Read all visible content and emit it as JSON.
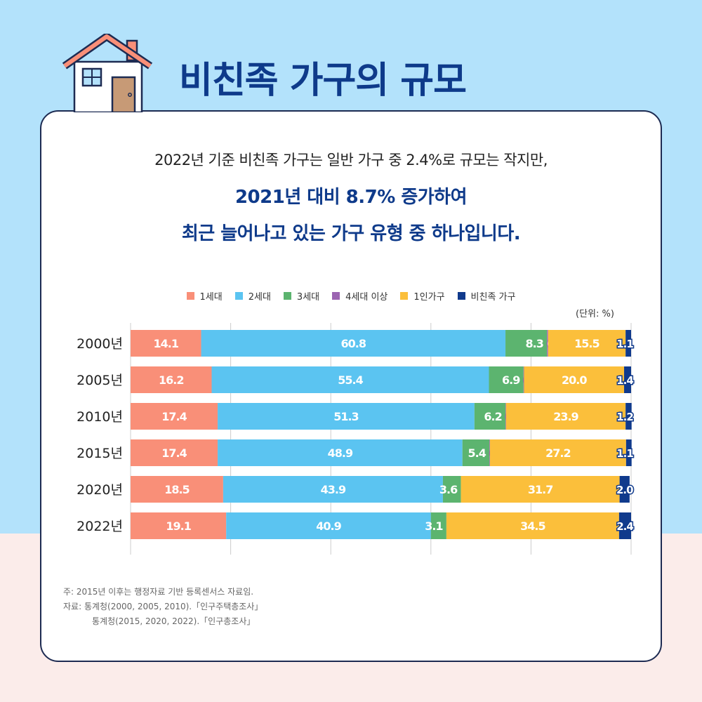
{
  "header": {
    "title": "비친족 가구의 규모"
  },
  "intro": {
    "line1": "2022년 기준 비친족 가구는 일반 가구 중 2.4%로 규모는 작지만,",
    "line2": "2021년 대비 8.7% 증가하여",
    "line3": "최근 늘어나고 있는 가구 유형 중 하나입니다."
  },
  "chart_data": {
    "type": "bar",
    "orientation": "horizontal",
    "stacked": true,
    "unit_label": "(단위: %)",
    "categories": [
      "2000년",
      "2005년",
      "2010년",
      "2015년",
      "2020년",
      "2022년"
    ],
    "xlim": [
      0,
      100
    ],
    "grid": true,
    "legend_position": "top",
    "series": [
      {
        "name": "1세대",
        "color": "#f98f78",
        "values": [
          14.1,
          16.2,
          17.4,
          17.4,
          18.5,
          19.1
        ]
      },
      {
        "name": "2세대",
        "color": "#5bc4f1",
        "values": [
          60.8,
          55.4,
          51.3,
          48.9,
          43.9,
          40.9
        ]
      },
      {
        "name": "3세대",
        "color": "#5cb46f",
        "values": [
          8.3,
          6.9,
          6.2,
          5.4,
          3.6,
          3.1
        ]
      },
      {
        "name": "4세대 이상",
        "color": "#9b64b1",
        "values": [
          0.2,
          0.1,
          0.1,
          0.1,
          null,
          null
        ]
      },
      {
        "name": "1인가구",
        "color": "#fbbf3b",
        "values": [
          15.5,
          20.0,
          23.9,
          27.2,
          31.7,
          34.5
        ]
      },
      {
        "name": "비친족 가구",
        "color": "#103a8c",
        "values": [
          1.1,
          1.4,
          1.2,
          1.1,
          2.0,
          2.4
        ]
      }
    ]
  },
  "notes": {
    "line1": "주: 2015년 이후는 행정자료 기반 등록센서스 자료임.",
    "line2": "자료: 통계청(2000, 2005, 2010).「인구주택총조사」",
    "line3": "통계청(2015, 2020, 2022).「인구총조사」"
  }
}
